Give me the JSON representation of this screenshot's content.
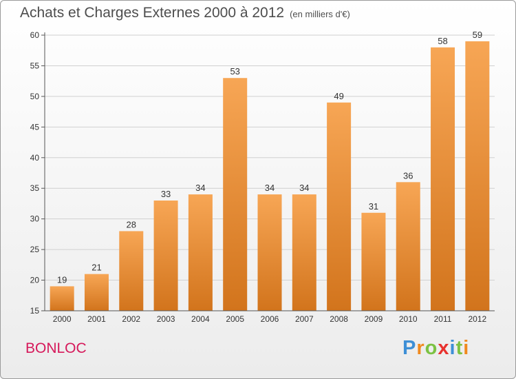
{
  "chart_data": {
    "type": "bar",
    "title": "Achats et Charges Externes 2000 à 2012",
    "subtitle": "(en milliers d'€)",
    "categories": [
      "2000",
      "2001",
      "2002",
      "2003",
      "2004",
      "2005",
      "2006",
      "2007",
      "2008",
      "2009",
      "2010",
      "2011",
      "2012"
    ],
    "values": [
      19,
      21,
      28,
      33,
      34,
      53,
      34,
      34,
      49,
      31,
      36,
      58,
      59
    ],
    "ylim": [
      15,
      60
    ],
    "yticks": [
      15,
      20,
      25,
      30,
      35,
      40,
      45,
      50,
      55,
      60
    ],
    "grid": true,
    "bar_color_top": "#f7a655",
    "bar_color_bottom": "#d2741c"
  },
  "place_name": "BONLOC",
  "logo": {
    "letters": [
      "P",
      "r",
      "o",
      "x",
      "i",
      "t",
      "i"
    ],
    "colors": [
      "#3d8fd6",
      "#f08a1e",
      "#7cc243",
      "#e8322e",
      "#3d8fd6",
      "#7cc243",
      "#f08a1e"
    ]
  }
}
